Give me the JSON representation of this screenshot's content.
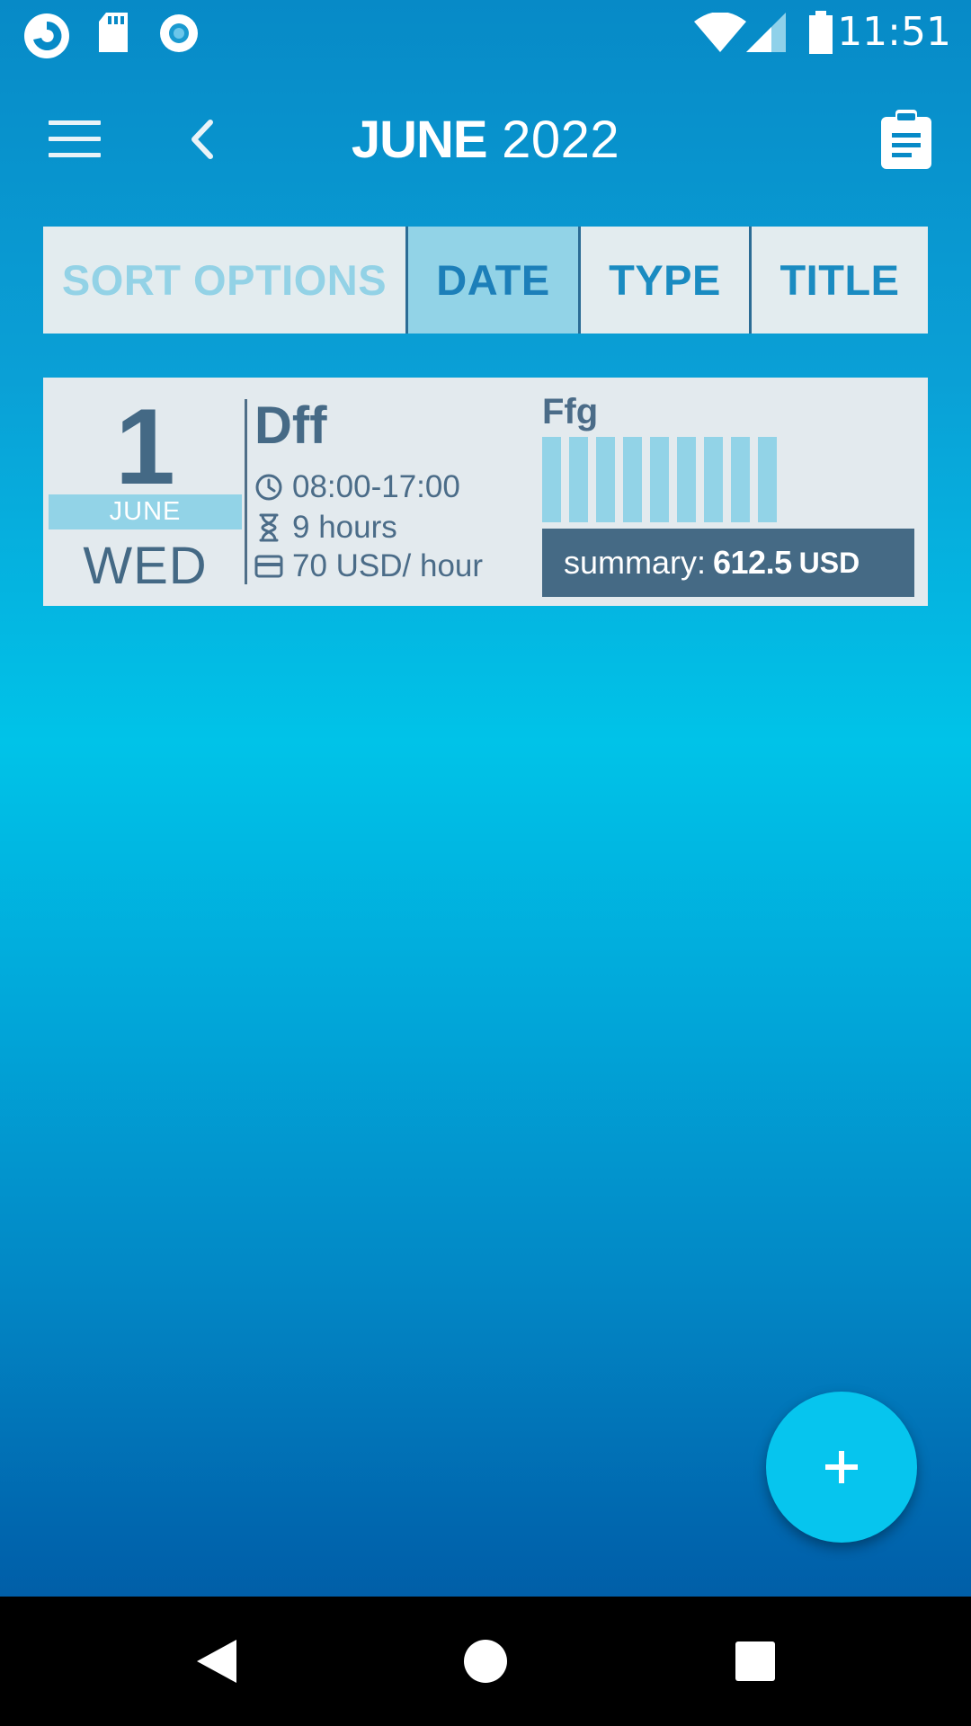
{
  "status_bar": {
    "time": "11:51",
    "icons": [
      "app-logo-icon",
      "sd-card-icon",
      "record-icon",
      "wifi-icon",
      "signal-icon",
      "battery-icon"
    ]
  },
  "app_bar": {
    "title_month": "JUNE",
    "title_year": "2022",
    "menu_icon": "menu-icon",
    "back_icon": "chevron-left-icon",
    "report_icon": "clipboard-icon"
  },
  "sort_bar": {
    "label": "SORT OPTIONS",
    "options": [
      "DATE",
      "TYPE",
      "TITLE"
    ],
    "active": "DATE"
  },
  "entries": [
    {
      "day": "1",
      "month": "JUNE",
      "weekday": "WED",
      "title": "Dff",
      "time_range": "08:00-17:00",
      "duration": "9 hours",
      "rate": "70 USD/ hour",
      "task": "Ffg",
      "hour_blocks": 9,
      "summary_label": "summary:",
      "summary_value": "612.5",
      "summary_currency": "USD"
    }
  ],
  "fab": {
    "icon": "plus-icon"
  },
  "nav_bar": {
    "icons": [
      "back-triangle-icon",
      "home-circle-icon",
      "recents-square-icon"
    ]
  },
  "colors": {
    "accent": "#06c5ee",
    "card_bg": "#e3eaee",
    "card_text": "#466a86",
    "highlight": "#92d3e7",
    "summary_bg": "#456a85"
  }
}
